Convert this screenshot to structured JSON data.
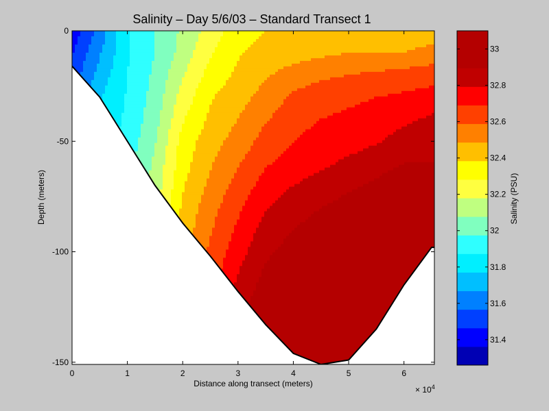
{
  "chart_data": {
    "type": "heatmap",
    "subtype": "filled-contour",
    "title": "Salinity – Day 5/6/03 – Standard Transect 1",
    "xlabel": "Distance along transect (meters)",
    "ylabel": "Depth (meters)",
    "x_exponent_label": "× 10",
    "x_exponent_power": "4",
    "xlim": [
      0,
      65500
    ],
    "ylim": [
      -151,
      0
    ],
    "xticks": [
      0,
      10000,
      20000,
      30000,
      40000,
      50000,
      60000
    ],
    "xtick_labels": [
      "0",
      "1",
      "2",
      "3",
      "4",
      "5",
      "6"
    ],
    "yticks": [
      0,
      -50,
      -100,
      -150
    ],
    "ytick_labels": [
      "0",
      "-50",
      "-100",
      "-150"
    ],
    "grid": false,
    "colorbar": {
      "label": "Salinity (PSU)",
      "range": [
        31.26,
        33.1
      ],
      "ticks": [
        31.4,
        31.6,
        31.8,
        32,
        32.2,
        32.4,
        32.6,
        32.8,
        33
      ],
      "tick_labels": [
        "31.4",
        "31.6",
        "31.8",
        "32",
        "32.2",
        "32.4",
        "32.6",
        "32.8",
        "33"
      ],
      "levels": [
        31.26,
        31.36,
        31.46,
        31.56,
        31.66,
        31.76,
        31.86,
        31.96,
        32.06,
        32.16,
        32.26,
        32.36,
        32.46,
        32.56,
        32.66,
        32.76,
        32.86,
        32.96,
        33.1
      ],
      "colors": [
        "#0000b4",
        "#0000ff",
        "#0040ff",
        "#0080ff",
        "#00bfff",
        "#00efff",
        "#2fffff",
        "#80ffbf",
        "#bfff80",
        "#ffff40",
        "#ffff00",
        "#ffbf00",
        "#ff8000",
        "#ff4000",
        "#ff0000",
        "#c00000",
        "#b40000",
        "#b40000"
      ]
    },
    "bottom_profile": {
      "x": [
        0,
        5000,
        10000,
        15000,
        20000,
        25000,
        30000,
        35000,
        40000,
        45000,
        50000,
        55000,
        60000,
        65000,
        65500
      ],
      "depth": [
        -16,
        -30,
        -50,
        -70,
        -87,
        -102,
        -118,
        -133,
        -146,
        -151,
        -149,
        -135,
        -115,
        -98,
        -98
      ]
    },
    "salinity_field": {
      "description_units": "PSU",
      "x": [
        0,
        5000,
        10000,
        15000,
        20000,
        25000,
        30000,
        35000,
        40000,
        45000,
        50000,
        55000,
        60000,
        65500
      ],
      "depth": [
        0,
        -10,
        -20,
        -30,
        -40,
        -50,
        -60,
        -70,
        -80,
        -90,
        -100,
        -110,
        -120,
        -130,
        -140,
        -150
      ],
      "values": [
        [
          31.4,
          31.6,
          31.85,
          31.96,
          32.08,
          32.2,
          32.32,
          32.36,
          32.4,
          32.4,
          32.4,
          32.4,
          32.4,
          32.4
        ],
        [
          31.45,
          31.65,
          31.85,
          31.96,
          32.1,
          32.25,
          32.35,
          32.4,
          32.42,
          32.44,
          32.46,
          32.46,
          32.46,
          32.5
        ],
        [
          31.5,
          31.7,
          31.86,
          31.98,
          32.15,
          32.3,
          32.38,
          32.45,
          32.5,
          32.54,
          32.56,
          32.58,
          32.6,
          32.62
        ],
        [
          31.55,
          31.75,
          31.87,
          32.0,
          32.2,
          32.35,
          32.42,
          32.5,
          32.58,
          32.62,
          32.64,
          32.66,
          32.68,
          32.7
        ],
        [
          31.6,
          31.78,
          31.88,
          32.02,
          32.25,
          32.38,
          32.46,
          32.55,
          32.62,
          32.66,
          32.68,
          32.7,
          32.74,
          32.78
        ],
        [
          31.65,
          31.8,
          31.9,
          32.05,
          32.3,
          32.42,
          32.5,
          32.6,
          32.66,
          32.7,
          32.72,
          32.75,
          32.8,
          32.82
        ],
        [
          31.7,
          31.82,
          31.92,
          32.08,
          32.32,
          32.45,
          32.55,
          32.65,
          32.7,
          32.74,
          32.78,
          32.82,
          32.86,
          32.86
        ],
        [
          31.75,
          31.84,
          31.94,
          32.1,
          32.35,
          32.48,
          32.6,
          32.7,
          32.76,
          32.8,
          32.84,
          32.88,
          32.92,
          32.92
        ],
        [
          31.8,
          31.86,
          31.96,
          32.12,
          32.38,
          32.52,
          32.64,
          32.75,
          32.82,
          32.86,
          32.9,
          32.94,
          32.96,
          32.96
        ],
        [
          31.82,
          31.88,
          31.98,
          32.15,
          32.4,
          32.55,
          32.68,
          32.8,
          32.86,
          32.9,
          32.95,
          32.98,
          33.0,
          33.0
        ],
        [
          31.84,
          31.9,
          32.0,
          32.18,
          32.42,
          32.58,
          32.72,
          32.84,
          32.9,
          32.96,
          33.0,
          33.02,
          33.04,
          33.04
        ],
        [
          31.86,
          31.92,
          32.02,
          32.2,
          32.45,
          32.6,
          32.76,
          32.88,
          32.94,
          33.0,
          33.04,
          33.06,
          33.06,
          33.06
        ],
        [
          31.88,
          31.94,
          32.04,
          32.22,
          32.48,
          32.62,
          32.8,
          32.92,
          32.98,
          33.04,
          33.06,
          33.08,
          33.08,
          33.08
        ],
        [
          31.9,
          31.96,
          32.06,
          32.24,
          32.5,
          32.64,
          32.84,
          32.96,
          33.02,
          33.06,
          33.08,
          33.08,
          33.08,
          33.08
        ],
        [
          31.92,
          31.98,
          32.08,
          32.26,
          32.52,
          32.66,
          32.88,
          32.98,
          33.06,
          33.08,
          33.08,
          33.08,
          33.08,
          33.08
        ],
        [
          31.94,
          32.0,
          32.1,
          32.28,
          32.54,
          32.68,
          32.9,
          33.0,
          33.08,
          33.08,
          33.08,
          33.08,
          33.08,
          33.08
        ]
      ]
    }
  }
}
